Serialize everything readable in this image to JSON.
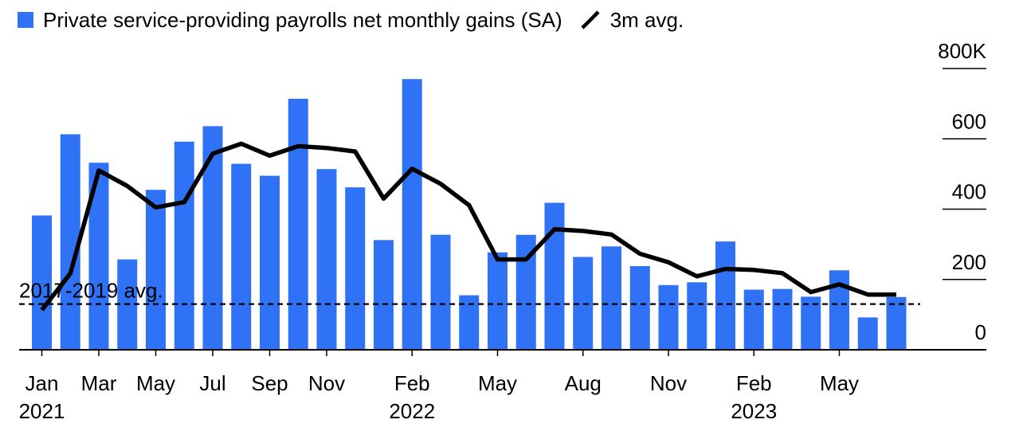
{
  "legend": {
    "bar_label": "Private service-providing payrolls net monthly gains (SA)",
    "line_label": "3m avg.",
    "bar_color": "#3072F6",
    "line_color": "#000000"
  },
  "chart_data": {
    "type": "bar",
    "title": "",
    "xlabel": "",
    "ylabel": "",
    "ylim": [
      0,
      800
    ],
    "y_unit_suffix": "K",
    "y_ticks": [
      0,
      200,
      400,
      600,
      800
    ],
    "y_tick_labels": [
      "0",
      "200",
      "400",
      "600",
      "800K"
    ],
    "grid": "horizontal ticks on right",
    "legend_position": "top-left",
    "categories": [
      "Jan 2021",
      "Feb 2021",
      "Mar 2021",
      "Apr 2021",
      "May 2021",
      "Jun 2021",
      "Jul 2021",
      "Aug 2021",
      "Sep 2021",
      "Oct 2021",
      "Nov 2021",
      "Dec 2021",
      "Jan 2022",
      "Feb 2022",
      "Mar 2022",
      "Apr 2022",
      "May 2022",
      "Jun 2022",
      "Jul 2022",
      "Aug 2022",
      "Sep 2022",
      "Oct 2022",
      "Nov 2022",
      "Dec 2022",
      "Jan 2023",
      "Feb 2023",
      "Mar 2023",
      "Apr 2023",
      "May 2023",
      "Jun 2023",
      "Jul 2023"
    ],
    "x_tick_labels": [
      {
        "index": 0,
        "month": "Jan",
        "year": "2021"
      },
      {
        "index": 2,
        "month": "Mar",
        "year": ""
      },
      {
        "index": 4,
        "month": "May",
        "year": ""
      },
      {
        "index": 6,
        "month": "Jul",
        "year": ""
      },
      {
        "index": 8,
        "month": "Sep",
        "year": ""
      },
      {
        "index": 10,
        "month": "Nov",
        "year": ""
      },
      {
        "index": 13,
        "month": "Feb",
        "year": "2022"
      },
      {
        "index": 16,
        "month": "May",
        "year": ""
      },
      {
        "index": 19,
        "month": "Aug",
        "year": ""
      },
      {
        "index": 22,
        "month": "Nov",
        "year": ""
      },
      {
        "index": 25,
        "month": "Feb",
        "year": "2023"
      },
      {
        "index": 28,
        "month": "May",
        "year": ""
      }
    ],
    "series": [
      {
        "name": "Private service-providing payrolls net monthly gains (SA)",
        "type": "bar",
        "values": [
          382,
          613,
          532,
          257,
          455,
          592,
          636,
          529,
          495,
          714,
          514,
          462,
          312,
          770,
          327,
          155,
          277,
          327,
          418,
          264,
          294,
          238,
          184,
          192,
          308,
          171,
          173,
          151,
          226,
          92,
          150
        ]
      },
      {
        "name": "3m avg.",
        "type": "line",
        "values": [
          113,
          217,
          510,
          466,
          405,
          420,
          558,
          586,
          552,
          579,
          574,
          564,
          430,
          515,
          472,
          411,
          257,
          257,
          343,
          338,
          328,
          273,
          249,
          209,
          230,
          227,
          218,
          164,
          186,
          157,
          157
        ]
      }
    ],
    "reference_line": {
      "label": "2017-2019 avg.",
      "value": 130
    }
  }
}
